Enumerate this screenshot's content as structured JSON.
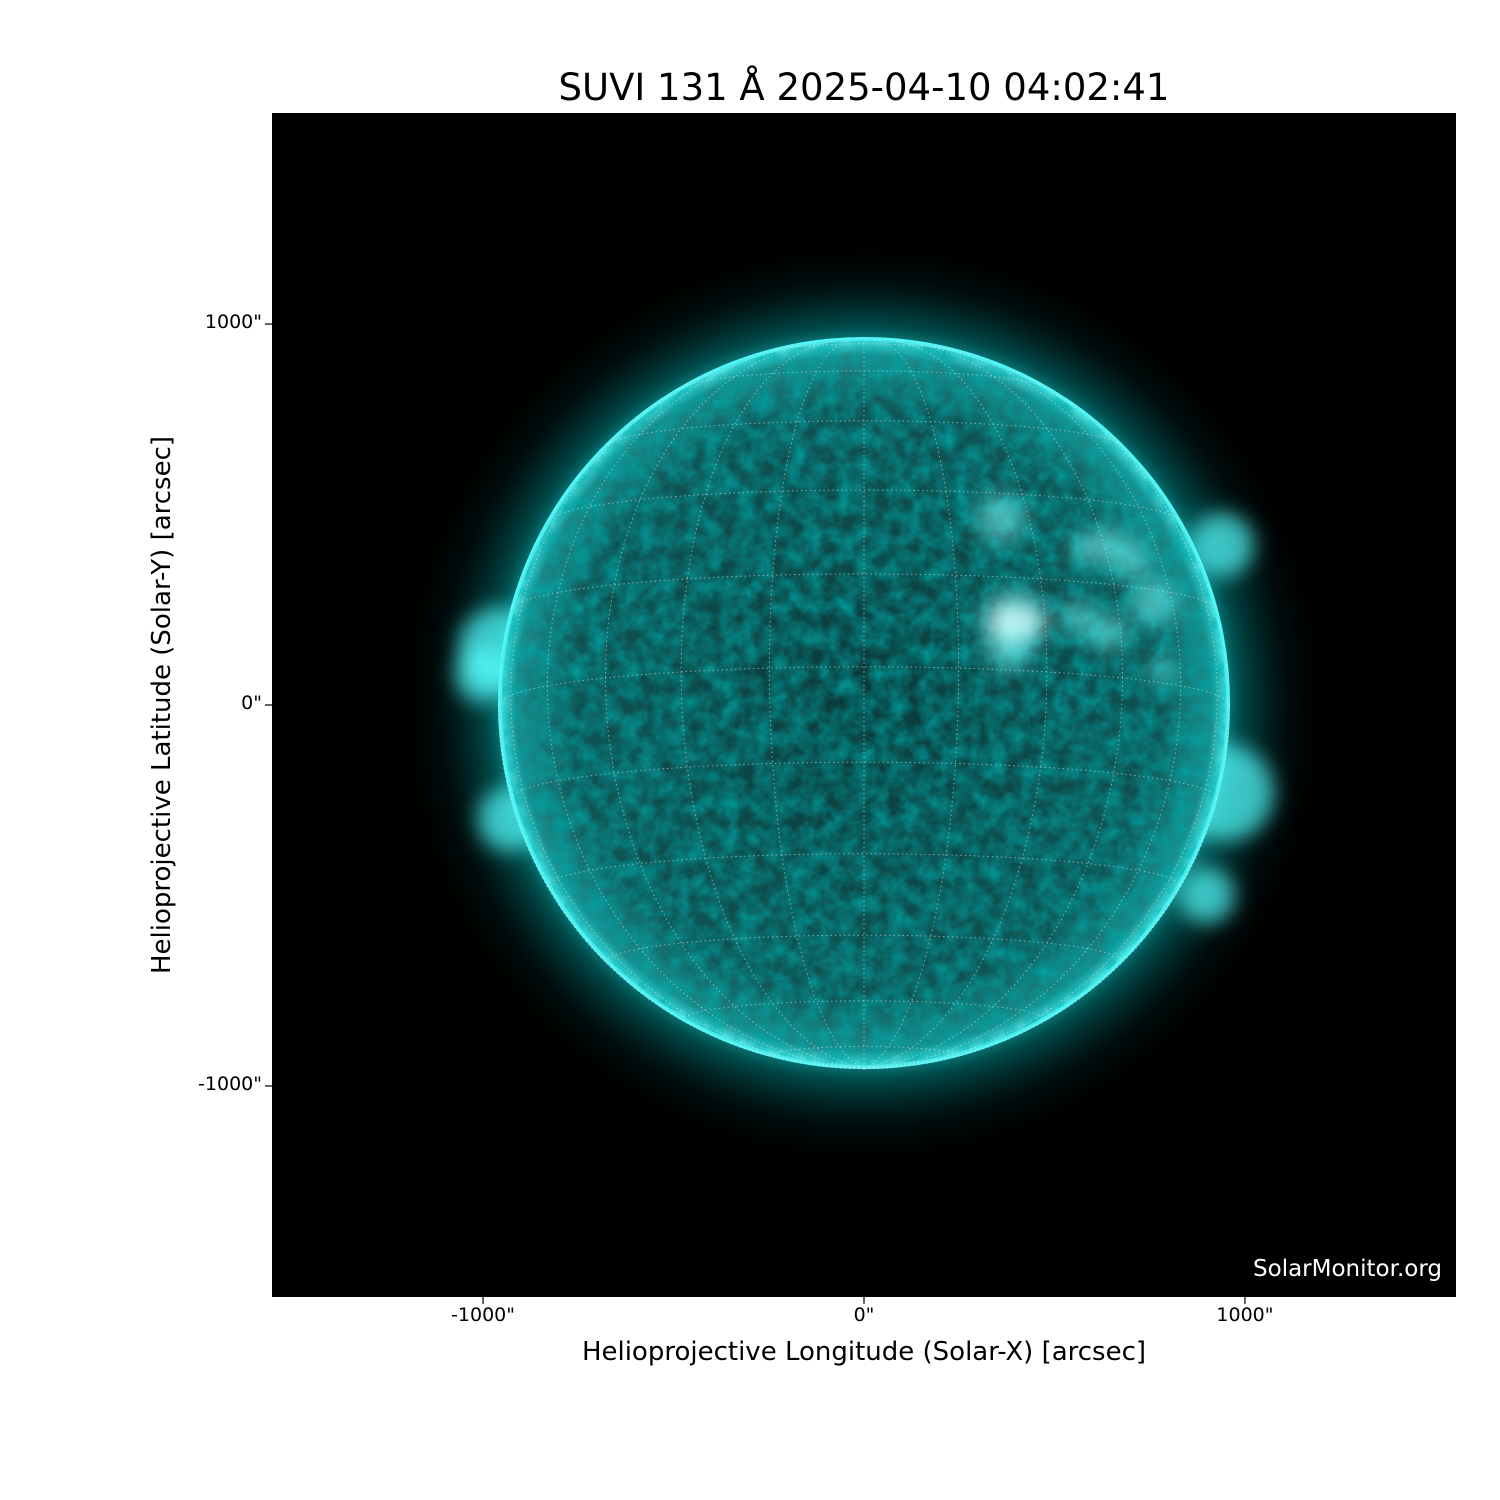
{
  "chart_data": {
    "type": "image",
    "title": "SUVI 131 Å 2025-04-10 04:02:41",
    "xlabel": "Helioprojective Longitude (Solar-X) [arcsec]",
    "ylabel": "Helioprojective Latitude (Solar-Y) [arcsec]",
    "xlim": [
      -1554,
      1554
    ],
    "ylim": [
      -1554,
      1554
    ],
    "xticks": [
      {
        "value": -1000,
        "label": "-1000\""
      },
      {
        "value": 0,
        "label": "0\""
      },
      {
        "value": 1000,
        "label": "1000\""
      }
    ],
    "yticks": [
      {
        "value": 1000,
        "label": "1000\""
      },
      {
        "value": 0,
        "label": "0\""
      },
      {
        "value": -1000,
        "label": "-1000\""
      }
    ],
    "solar_radius_arcsec": 960,
    "grid_spacing_deg": 15,
    "colormap_color": "#00e5e5",
    "background": "#000000",
    "watermark": "SolarMonitor.org"
  }
}
